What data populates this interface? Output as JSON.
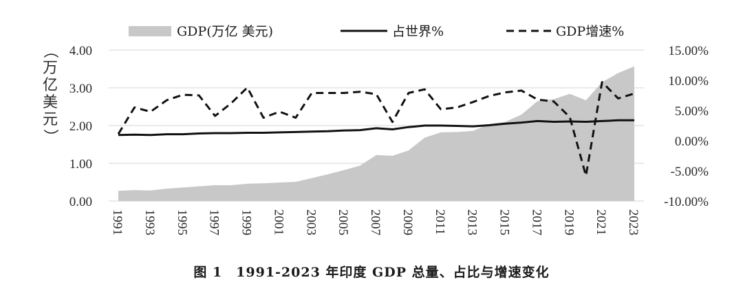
{
  "chart_data": {
    "type": "area+line",
    "caption": "图 1　1991-2023 年印度 GDP 总量、占比与增速变化",
    "x": [
      1991,
      1992,
      1993,
      1994,
      1995,
      1996,
      1997,
      1998,
      1999,
      2000,
      2001,
      2002,
      2003,
      2004,
      2005,
      2006,
      2007,
      2008,
      2009,
      2010,
      2011,
      2012,
      2013,
      2014,
      2015,
      2016,
      2017,
      2018,
      2019,
      2020,
      2021,
      2022,
      2023
    ],
    "x_tick_labels": [
      "1991",
      "1993",
      "1995",
      "1997",
      "1999",
      "2001",
      "2003",
      "2005",
      "2007",
      "2009",
      "2011",
      "2013",
      "2015",
      "2017",
      "2019",
      "2021",
      "2023"
    ],
    "left_axis": {
      "label": "（万亿 美元）",
      "label_chars": [
        "（",
        "万",
        "亿",
        "美",
        "元",
        "）"
      ],
      "range": [
        0,
        4
      ],
      "ticks": [
        "0.00",
        "1.00",
        "2.00",
        "3.00",
        "4.00"
      ]
    },
    "right_axis": {
      "range": [
        -10,
        15
      ],
      "ticks": [
        "-10.00%",
        "-5.00%",
        "0.00%",
        "5.00%",
        "10.00%",
        "15.00%"
      ]
    },
    "series": [
      {
        "name": "GDP(万亿 美元)",
        "type": "area",
        "axis": "left",
        "color": "#c8c8c8",
        "values": [
          0.27,
          0.29,
          0.28,
          0.33,
          0.36,
          0.39,
          0.42,
          0.42,
          0.46,
          0.47,
          0.49,
          0.51,
          0.61,
          0.71,
          0.82,
          0.94,
          1.22,
          1.2,
          1.34,
          1.68,
          1.82,
          1.83,
          1.86,
          2.04,
          2.1,
          2.29,
          2.65,
          2.7,
          2.84,
          2.67,
          3.15,
          3.39,
          3.57
        ]
      },
      {
        "name": "占世界%",
        "type": "line",
        "axis": "left",
        "style": "solid",
        "color": "#111111",
        "values": [
          1.75,
          1.76,
          1.75,
          1.77,
          1.77,
          1.79,
          1.8,
          1.8,
          1.81,
          1.81,
          1.82,
          1.83,
          1.84,
          1.85,
          1.87,
          1.88,
          1.93,
          1.9,
          1.96,
          2.0,
          2.0,
          1.99,
          1.98,
          2.01,
          2.05,
          2.08,
          2.12,
          2.1,
          2.11,
          2.1,
          2.12,
          2.14,
          2.14
        ]
      },
      {
        "name": "GDP增速%",
        "type": "line",
        "axis": "right",
        "style": "dashed",
        "color": "#111111",
        "values": [
          1.1,
          5.5,
          4.8,
          6.7,
          7.6,
          7.5,
          4.1,
          6.2,
          8.8,
          3.8,
          4.8,
          3.8,
          7.9,
          7.9,
          7.9,
          8.1,
          7.7,
          3.1,
          7.9,
          8.5,
          5.2,
          5.5,
          6.4,
          7.4,
          8.0,
          8.3,
          6.8,
          6.5,
          3.9,
          -5.8,
          9.7,
          7.0,
          7.8
        ]
      }
    ],
    "legend": {
      "placement": "top",
      "items": [
        "GDP(万亿 美元)",
        "占世界%",
        "GDP增速%"
      ]
    }
  }
}
